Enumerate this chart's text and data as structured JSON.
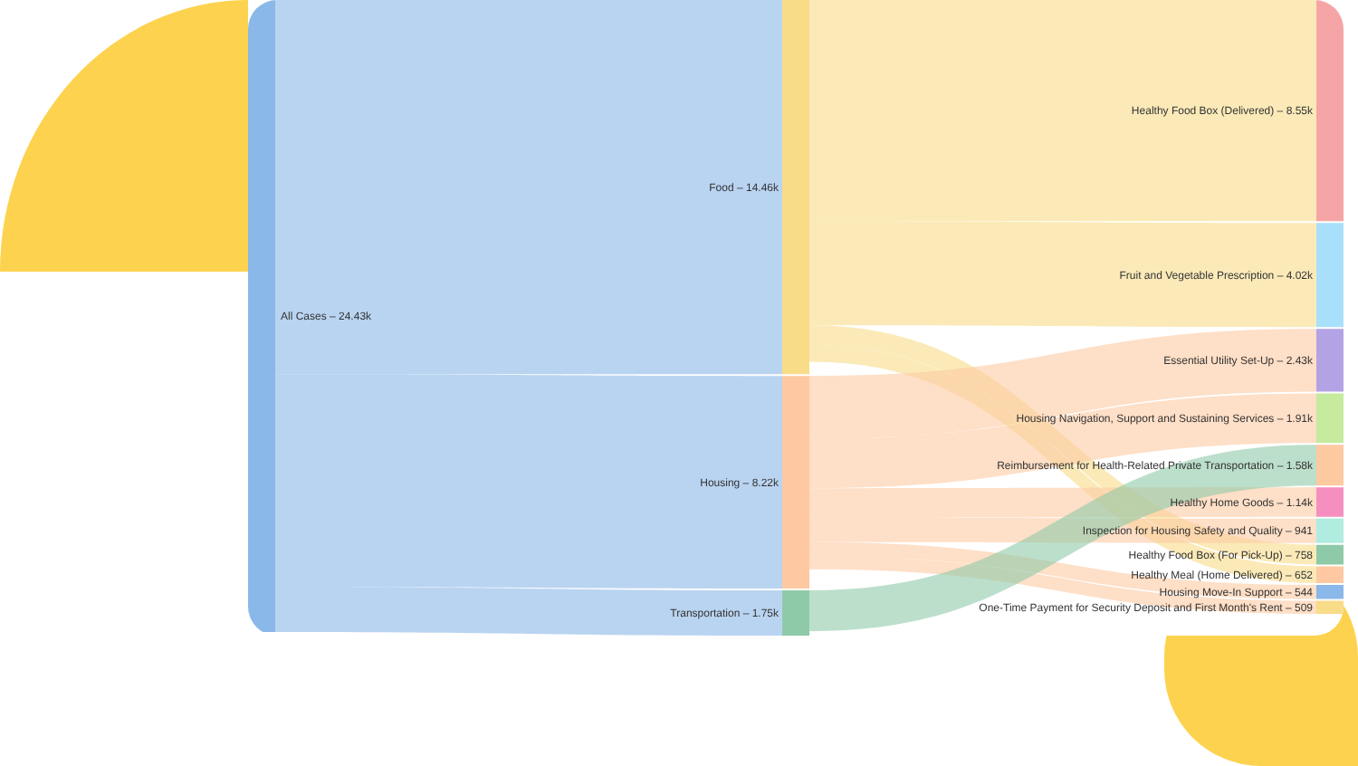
{
  "chart_data": {
    "type": "other",
    "categories": [
      "All Cases –",
      "Food –",
      "Housing –",
      "Transportation –",
      "Healthy Food Box (Delivered) –",
      "Fruit and Vegetable Prescription –",
      "Essential Utility Set-Up –",
      "Housing Navigation, Support and Sustaining Services –",
      "Reimbursement for Health-Related Private Transportation –",
      "Healthy Home Goods –",
      "Inspection for Housing Safety and Quality –",
      "Healthy Food Box (For Pick-Up) –",
      "Healthy Meal (Home Delivered) –",
      "Housing Move-In Support –",
      "One-Time Payment for Security Deposit and First Month's Rent –"
    ],
    "values": [
      24430,
      null,
      null,
      null,
      null,
      null,
      null,
      null,
      null,
      null,
      null,
      null,
      null,
      null,
      null
    ],
    "value_labels": [
      "24.43k",
      null,
      null,
      null,
      null,
      null,
      null,
      null,
      null,
      null,
      null,
      null,
      null,
      null,
      null
    ],
    "colors": [
      "#8ab8e8",
      "#f8dc88",
      "#fec9a2",
      "#8fcaa8",
      "#f6a5a6",
      "#a8e0fb",
      "#b3a3e4",
      "#c6ea9e",
      "#fdc9a0",
      "#f68fbf",
      "#b0ece0",
      "#8fcaa8",
      "#fec9a2",
      "#8ab8e8",
      "#f8dc88"
    ],
    "series": [
      {
        "values": [
          null,
          14460,
          8220,
          1750,
          null,
          null,
          null,
          null,
          null,
          null,
          null,
          null,
          null,
          null,
          null
        ],
        "value_labels": [
          null,
          "14.46k",
          "8.22k",
          "1.75k",
          null,
          null,
          null,
          null,
          null,
          null,
          null,
          null,
          null,
          null,
          null
        ]
      },
      {
        "values": [
          null,
          null,
          null,
          null,
          8550,
          4020,
          null,
          null,
          null,
          null,
          null,
          758,
          652,
          null,
          null
        ],
        "value_labels": [
          null,
          null,
          null,
          null,
          "8.55k",
          "4.02k",
          null,
          null,
          null,
          null,
          null,
          "758",
          "652",
          null,
          null
        ]
      },
      {
        "values": [
          null,
          null,
          null,
          null,
          null,
          null,
          2430,
          1910,
          null,
          1140,
          941,
          null,
          null,
          544,
          509
        ],
        "value_labels": [
          null,
          null,
          null,
          null,
          null,
          null,
          "2.43k",
          "1.91k",
          null,
          "1.14k",
          "941",
          null,
          null,
          "544",
          "509"
        ]
      },
      {
        "values": [
          null,
          null,
          null,
          null,
          null,
          null,
          null,
          null,
          1580,
          null,
          null,
          null,
          null,
          null,
          null
        ],
        "value_labels": [
          null,
          null,
          null,
          null,
          null,
          null,
          null,
          null,
          "1.58k",
          null,
          null,
          null,
          null,
          null,
          null
        ]
      }
    ]
  }
}
